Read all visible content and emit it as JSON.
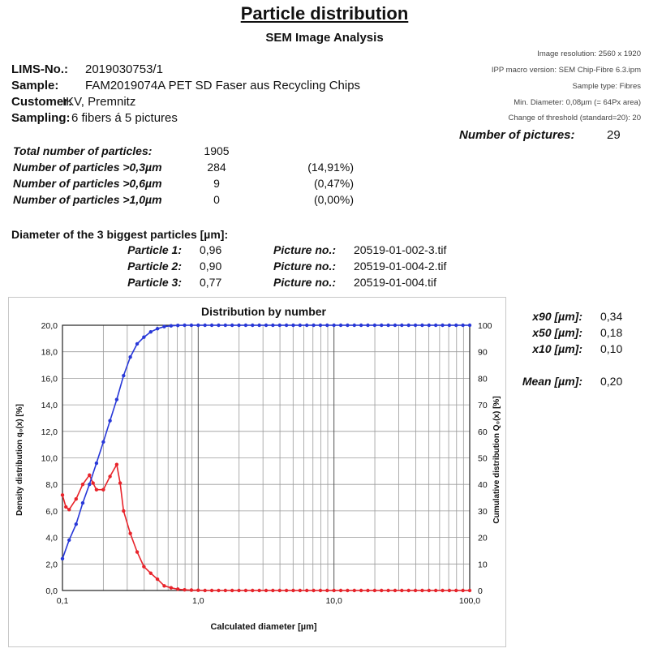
{
  "header": {
    "title": "Particle distribution",
    "subtitle": "SEM Image Analysis"
  },
  "meta": {
    "resolution": "Image resolution:  2560 x 1920",
    "macro": "IPP macro version: SEM Chip-Fibre 6.3.ipm",
    "sample_type": "Sample type: Fibres",
    "min_diameter": "Min. Diameter: 0,08µm (=  64Px area)",
    "threshold": "Change of threshold (standard=20): 20"
  },
  "info": {
    "lims_label": "LIMS-No.:",
    "lims_value": "2019030753/1",
    "sample_label": "Sample:",
    "sample_value": "FAM2019074A PET SD Faser aus Recycling Chips",
    "customer_label": "Customer:",
    "customer_value": "IKV, Premnitz",
    "sampling_label": "Sampling:",
    "sampling_value": "6 fibers á 5 pictures"
  },
  "pictures": {
    "label": "Number of pictures:",
    "value": "29"
  },
  "stats": {
    "total_label": "Total number of particles:",
    "total_value": "1905",
    "gt03_label": "Number of particles >0,3µm",
    "gt03_value": "284",
    "gt03_pct": "(14,91%)",
    "gt06_label": "Number of particles >0,6µm",
    "gt06_value": "9",
    "gt06_pct": "(0,47%)",
    "gt10_label": "Number of particles >1,0µm",
    "gt10_value": "0",
    "gt10_pct": "(0,00%)"
  },
  "biggest": {
    "title": "Diameter of the 3 biggest particles [µm]:",
    "picture_label": "Picture no.:",
    "p1_label": "Particle 1:",
    "p1_value": "0,96",
    "p1_pic": "20519-01-002-3.tif",
    "p2_label": "Particle 2:",
    "p2_value": "0,90",
    "p2_pic": "20519-01-004-2.tif",
    "p3_label": "Particle 3:",
    "p3_value": "0,77",
    "p3_pic": "20519-01-004.tif"
  },
  "summary": {
    "x90_label": "x90 [µm]:",
    "x90_value": "0,34",
    "x50_label": "x50 [µm]:",
    "x50_value": "0,18",
    "x10_label": "x10 [µm]:",
    "x10_value": "0,10",
    "mean_label": "Mean [µm]:",
    "mean_value": "0,20"
  },
  "chart_data": {
    "type": "line",
    "title": "Distribution by number",
    "xlabel": "Calculated diameter [µm]",
    "ylabel_left": "Density distribution q₀(x) [%]",
    "ylabel_right": "Cumulative distribution Q₀(x) [%]",
    "xscale": "log",
    "xlim": [
      0.1,
      100
    ],
    "ylim_left": [
      0,
      20
    ],
    "ylim_right": [
      0,
      100
    ],
    "grid": true,
    "x_tick_labels": [
      "0,1",
      "1,0",
      "10,0",
      "100,0"
    ],
    "y_left_tick_labels": [
      "0,0",
      "2,0",
      "4,0",
      "6,0",
      "8,0",
      "10,0",
      "12,0",
      "14,0",
      "16,0",
      "18,0",
      "20,0"
    ],
    "y_right_tick_labels": [
      "0",
      "10",
      "20",
      "30",
      "40",
      "50",
      "60",
      "70",
      "80",
      "90",
      "100"
    ],
    "colors": {
      "density": "#e8242b",
      "cumulative": "#2838d8"
    },
    "series": [
      {
        "axis": "left",
        "x": [
          0.1,
          0.106,
          0.112,
          0.126,
          0.141,
          0.158,
          0.168,
          0.178,
          0.2,
          0.224,
          0.251,
          0.266,
          0.282,
          0.316,
          0.355,
          0.398,
          0.447,
          0.501,
          0.562,
          0.631,
          0.708,
          0.794,
          0.891,
          1.0,
          1.122,
          1.259,
          1.413,
          1.585,
          1.778,
          1.995,
          2.239,
          2.512,
          2.818,
          3.162,
          3.548,
          3.981,
          4.467,
          5.012,
          5.623,
          6.31,
          7.079,
          7.943,
          8.913,
          10.0,
          11.22,
          12.59,
          14.13,
          15.85,
          17.78,
          19.95,
          22.39,
          25.12,
          28.18,
          31.62,
          35.48,
          39.81,
          44.67,
          50.12,
          56.23,
          63.1,
          70.79,
          79.43,
          89.13,
          100.0
        ],
        "values": [
          7.2,
          6.3,
          6.1,
          6.9,
          8.0,
          8.7,
          8.1,
          7.6,
          7.6,
          8.6,
          9.5,
          8.1,
          6.0,
          4.3,
          2.9,
          1.8,
          1.3,
          0.85,
          0.35,
          0.2,
          0.1,
          0.05,
          0.03,
          0.02,
          0,
          0,
          0,
          0,
          0,
          0,
          0,
          0,
          0,
          0,
          0,
          0,
          0,
          0,
          0,
          0,
          0,
          0,
          0,
          0,
          0,
          0,
          0,
          0,
          0,
          0,
          0,
          0,
          0,
          0,
          0,
          0,
          0,
          0,
          0,
          0,
          0,
          0,
          0,
          0
        ]
      },
      {
        "axis": "right",
        "x": [
          0.1,
          0.112,
          0.126,
          0.141,
          0.158,
          0.178,
          0.2,
          0.224,
          0.251,
          0.282,
          0.316,
          0.355,
          0.398,
          0.447,
          0.501,
          0.562,
          0.631,
          0.708,
          0.794,
          0.891,
          1.0,
          1.122,
          1.259,
          1.413,
          1.585,
          1.778,
          1.995,
          2.239,
          2.512,
          2.818,
          3.162,
          3.548,
          3.981,
          4.467,
          5.012,
          5.623,
          6.31,
          7.079,
          7.943,
          8.913,
          10.0,
          11.22,
          12.59,
          14.13,
          15.85,
          17.78,
          19.95,
          22.39,
          25.12,
          28.18,
          31.62,
          35.48,
          39.81,
          44.67,
          50.12,
          56.23,
          63.1,
          70.79,
          79.43,
          89.13,
          100.0
        ],
        "values": [
          12,
          19,
          25,
          33,
          40,
          48,
          56,
          64,
          72,
          81,
          88,
          93,
          95.5,
          97.5,
          98.7,
          99.5,
          99.8,
          99.95,
          100,
          100,
          100,
          100,
          100,
          100,
          100,
          100,
          100,
          100,
          100,
          100,
          100,
          100,
          100,
          100,
          100,
          100,
          100,
          100,
          100,
          100,
          100,
          100,
          100,
          100,
          100,
          100,
          100,
          100,
          100,
          100,
          100,
          100,
          100,
          100,
          100,
          100,
          100,
          100,
          100,
          100,
          100
        ]
      }
    ]
  }
}
